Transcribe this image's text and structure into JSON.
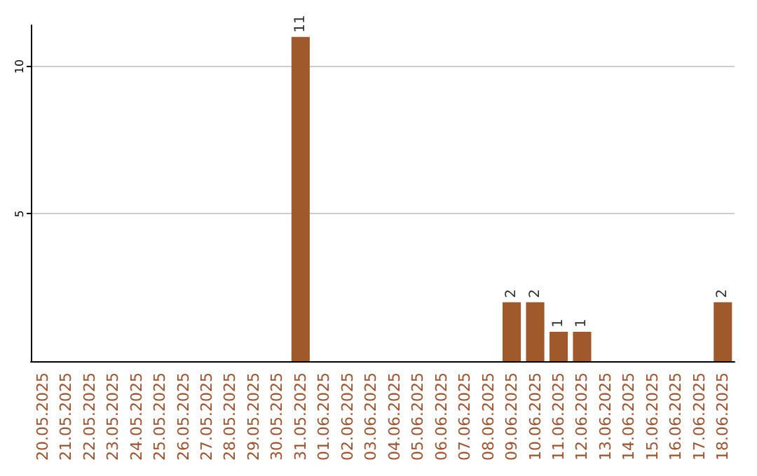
{
  "chart_data": {
    "type": "bar",
    "categories": [
      "20.05.2025",
      "21.05.2025",
      "22.05.2025",
      "23.05.2025",
      "24.05.2025",
      "25.05.2025",
      "26.05.2025",
      "27.05.2025",
      "28.05.2025",
      "29.05.2025",
      "30.05.2025",
      "31.05.2025",
      "01.06.2025",
      "02.06.2025",
      "03.06.2025",
      "04.06.2025",
      "05.06.2025",
      "06.06.2025",
      "07.06.2025",
      "08.06.2025",
      "09.06.2025",
      "10.06.2025",
      "11.06.2025",
      "12.06.2025",
      "13.06.2025",
      "14.06.2025",
      "15.06.2025",
      "16.06.2025",
      "17.06.2025",
      "18.06.2025"
    ],
    "values": [
      0,
      0,
      0,
      0,
      0,
      0,
      0,
      0,
      0,
      0,
      0,
      11,
      0,
      0,
      0,
      0,
      0,
      0,
      0,
      0,
      2,
      2,
      1,
      1,
      0,
      0,
      0,
      0,
      0,
      2
    ],
    "value_labels": [
      null,
      null,
      null,
      null,
      null,
      null,
      null,
      null,
      null,
      null,
      null,
      "11",
      null,
      null,
      null,
      null,
      null,
      null,
      null,
      null,
      "2",
      "2",
      "1",
      "1",
      null,
      null,
      null,
      null,
      null,
      "2"
    ],
    "color": "#a0592a",
    "ylim": [
      0,
      11.4
    ],
    "yticks": [
      5,
      10
    ],
    "grid": "y"
  }
}
